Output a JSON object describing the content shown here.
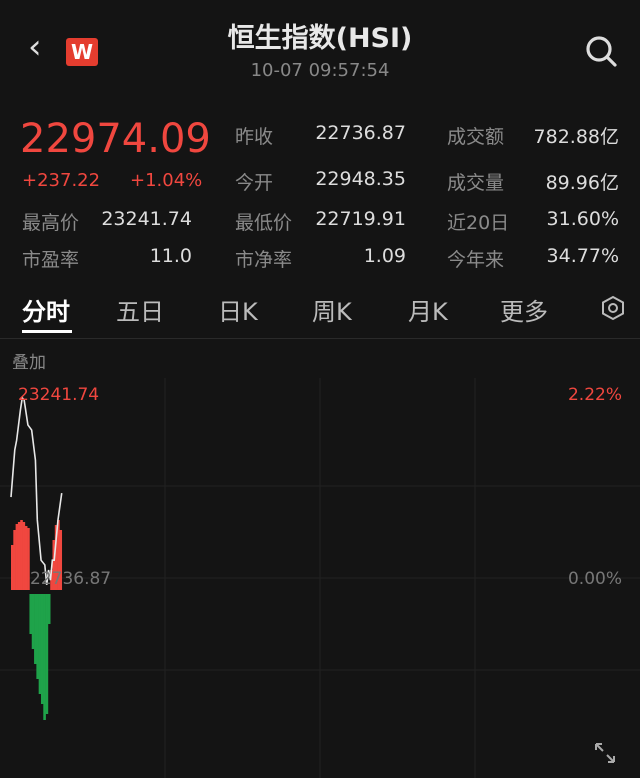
{
  "header": {
    "title": "恒生指数(HSI)",
    "timestamp": "10-07 09:57:54",
    "logo_letter": "W",
    "back_icon": "chevron-left-icon",
    "search_icon": "search-icon"
  },
  "quote": {
    "price": "22974.09",
    "change": "+237.22",
    "change_pct": "+1.04%",
    "up_color": "#f0473f",
    "down_color": "#1fa34a"
  },
  "stats": [
    {
      "label": "昨收",
      "value": "22736.87"
    },
    {
      "label": "成交额",
      "value": "782.88亿"
    },
    {
      "label": "今开",
      "value": "22948.35"
    },
    {
      "label": "成交量",
      "value": "89.96亿"
    },
    {
      "label": "最高价",
      "value": "23241.74"
    },
    {
      "label": "最低价",
      "value": "22719.91"
    },
    {
      "label": "近20日",
      "value": "31.60%"
    },
    {
      "label": "市盈率",
      "value": "11.0"
    },
    {
      "label": "市净率",
      "value": "1.09"
    },
    {
      "label": "今年来",
      "value": "34.77%"
    }
  ],
  "tabs": [
    {
      "label": "分时",
      "active": true
    },
    {
      "label": "五日"
    },
    {
      "label": "日K"
    },
    {
      "label": "周K"
    },
    {
      "label": "月K"
    },
    {
      "label": "更多"
    }
  ],
  "overlay_label": "叠加",
  "chart_data": {
    "type": "line",
    "y_top_label": "23241.74",
    "y_mid_label": "22736.87",
    "pct_top_label": "2.22%",
    "pct_mid_label": "0.00%",
    "ylim": [
      22232.0,
      23241.74
    ],
    "prev_close": 22736.87,
    "session_minutes": 330,
    "x": [
      0,
      2,
      3,
      5,
      6,
      7,
      9,
      11,
      13,
      14,
      16,
      18,
      19,
      20,
      21,
      22,
      23,
      24,
      25,
      27
    ],
    "price": [
      22960,
      23090,
      23117,
      23200,
      23234,
      23228,
      23159,
      23145,
      23062,
      22897,
      22786,
      22773,
      22718,
      22759,
      22731,
      22786,
      22786,
      22842,
      22897,
      22971
    ],
    "bars": [
      45,
      60,
      66,
      68,
      70,
      68,
      64,
      62,
      -40,
      -55,
      -70,
      -85,
      -100,
      -110,
      -126,
      -120,
      -30,
      20,
      50,
      65,
      70,
      60
    ],
    "grid": true
  }
}
